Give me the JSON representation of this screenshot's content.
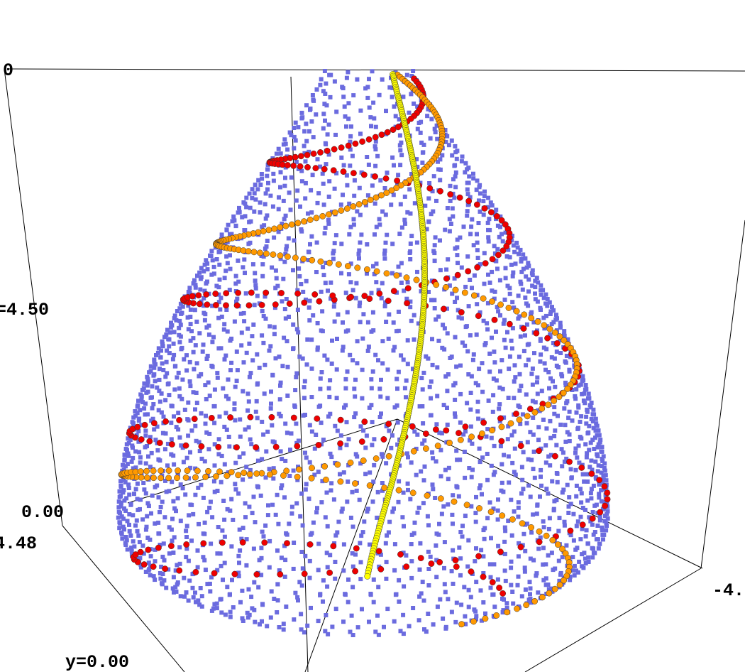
{
  "chart_data": {
    "type": "scatter",
    "projection": "3d",
    "axis_labels": {
      "z_top": "0",
      "z_mid": "=4.50",
      "z_zero": "0.00",
      "y_min": "4.48",
      "y_zero": "y=0.00",
      "x_min": "-4."
    },
    "surface": {
      "shape": "tapered bulb (pear)",
      "z_range": [
        0,
        9
      ],
      "max_radius": 4.48,
      "color": "#6b6bdf"
    },
    "series": [
      {
        "color": "#ee0000",
        "winding": "steep helix, many turns"
      },
      {
        "color": "#ff9900",
        "winding": "helix, fewer turns"
      },
      {
        "color": "#ffff00",
        "winding": "near-vertical meridian"
      }
    ]
  }
}
